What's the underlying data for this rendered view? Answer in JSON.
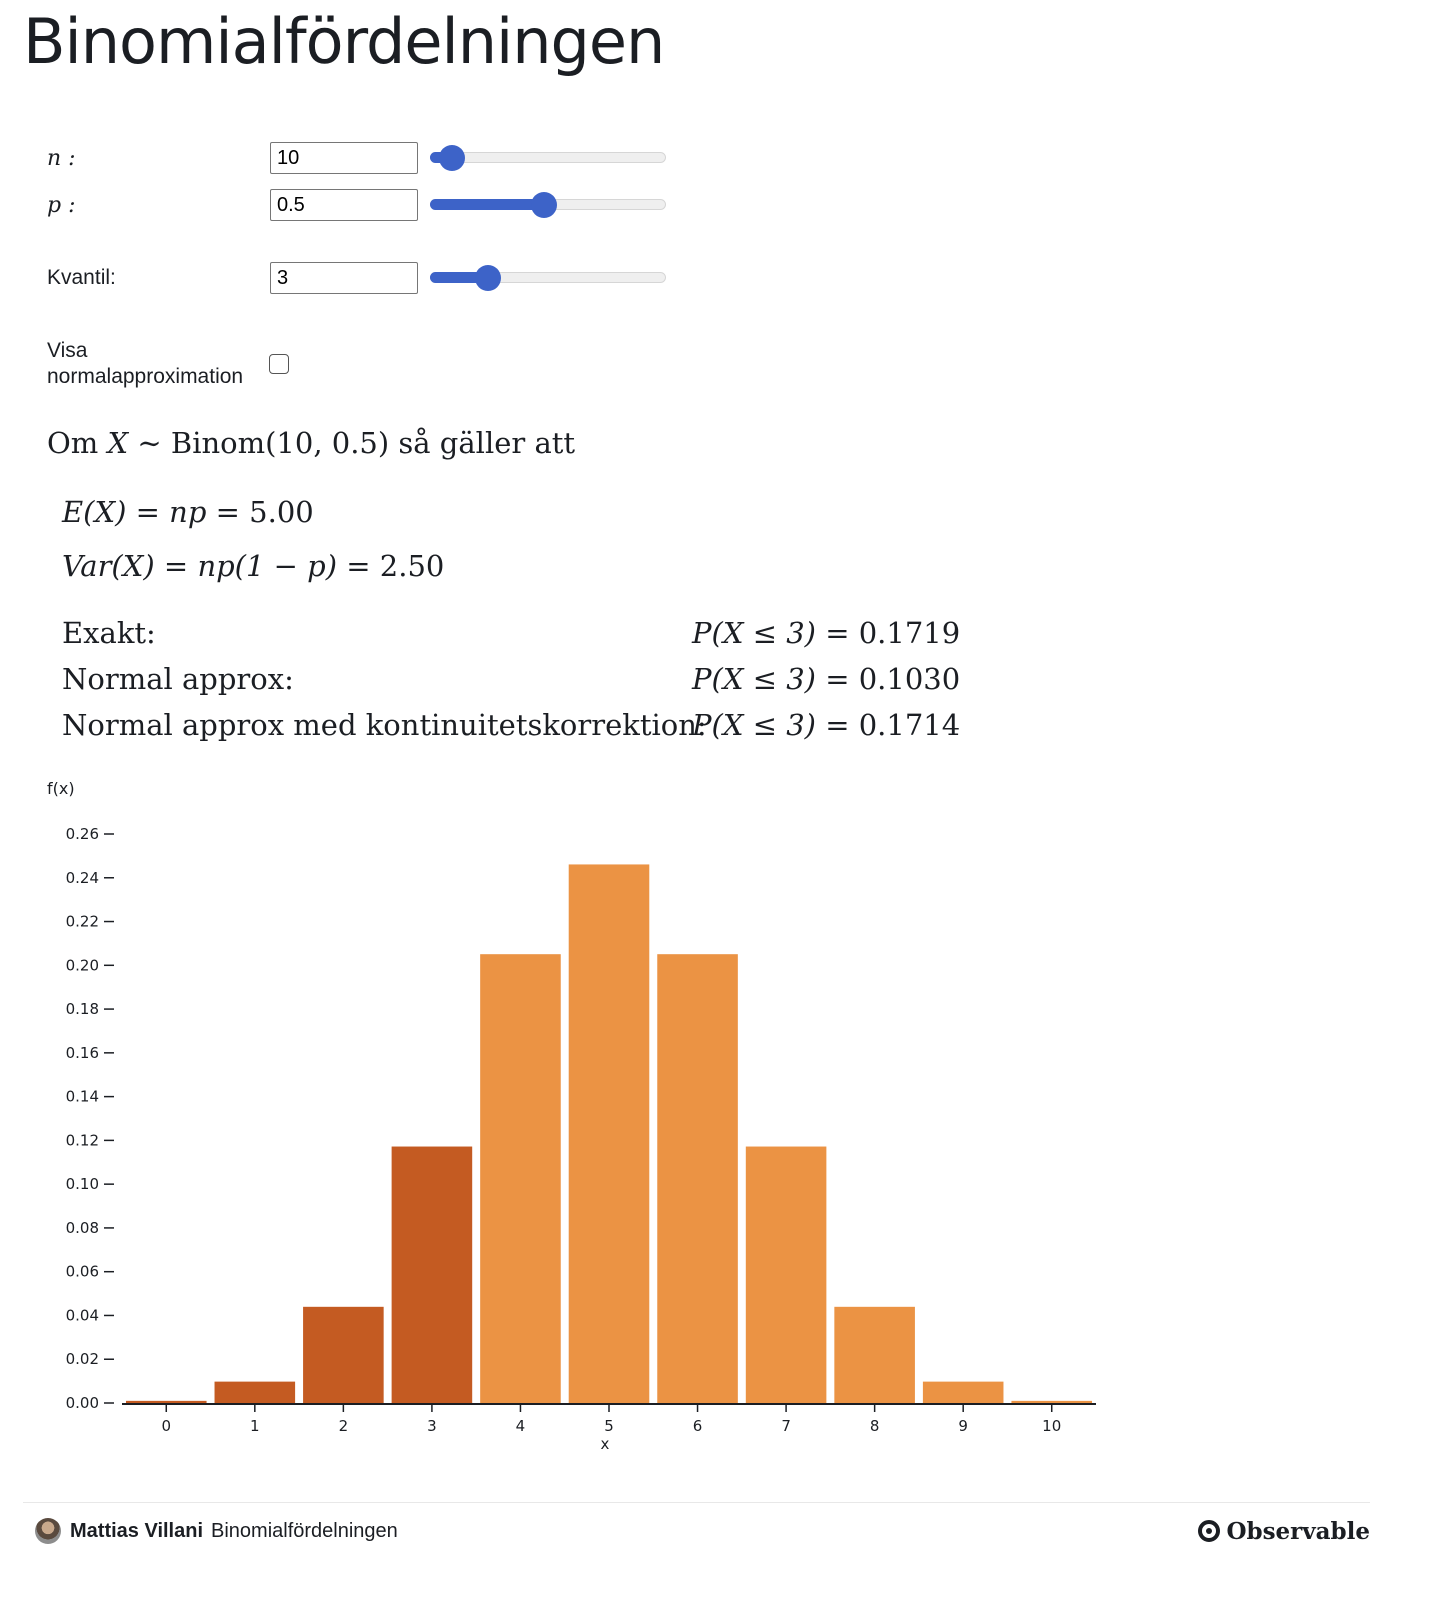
{
  "title": "Binomialfördelningen",
  "controls": {
    "n": {
      "label": "n :",
      "value": "10",
      "min": 1,
      "max": 100,
      "position": 10
    },
    "p": {
      "label": "p :",
      "value": "0.5",
      "min": 0,
      "max": 1,
      "position": 0.5
    },
    "kvantil": {
      "label": "Kvantil:",
      "value": "3",
      "min": 0,
      "max": 10,
      "position": 3
    },
    "normal": {
      "label_line1": "Visa",
      "label_line2": "normalapproximation",
      "checked": false
    }
  },
  "intro": {
    "prefix": "Om ",
    "var": "X",
    "sim": " ∼ Binom(10, 0.5) ",
    "suffix": "så gäller att"
  },
  "moments": {
    "ex_lhs": "E(X) = np",
    "ex_rhs": " = 5.00",
    "var_lhs": "Var(X) = np(1 − p)",
    "var_rhs": " = 2.50"
  },
  "probabilities": [
    {
      "label": "Exakt:",
      "expr": "P(X ≤ 3)",
      "value": " = 0.1719"
    },
    {
      "label": "Normal approx:",
      "expr": "P(X ≤ 3)",
      "value": " = 0.1030"
    },
    {
      "label": "Normal approx med kontinuitetskorrektion:",
      "expr": "P(X ≤ 3)",
      "value": " = 0.1714"
    }
  ],
  "chart_data": {
    "type": "bar",
    "ylabel": "f(x)",
    "xlabel": "x",
    "ylim": [
      0,
      0.26
    ],
    "yticks": [
      "0.00",
      "0.02",
      "0.04",
      "0.06",
      "0.08",
      "0.10",
      "0.12",
      "0.14",
      "0.16",
      "0.18",
      "0.20",
      "0.22",
      "0.24",
      "0.26"
    ],
    "categories": [
      "0",
      "1",
      "2",
      "3",
      "4",
      "5",
      "6",
      "7",
      "8",
      "9",
      "10"
    ],
    "values": [
      0.00098,
      0.00977,
      0.04395,
      0.11719,
      0.20508,
      0.24609,
      0.20508,
      0.11719,
      0.04395,
      0.00977,
      0.00098
    ],
    "highlight_through": 3,
    "colors": {
      "highlight": "#c45b22",
      "normal": "#eb9344",
      "axis": "#1b1e23"
    }
  },
  "footer": {
    "author": "Mattias Villani",
    "notebook": "Binomialfördelningen",
    "brand": "Observable"
  }
}
